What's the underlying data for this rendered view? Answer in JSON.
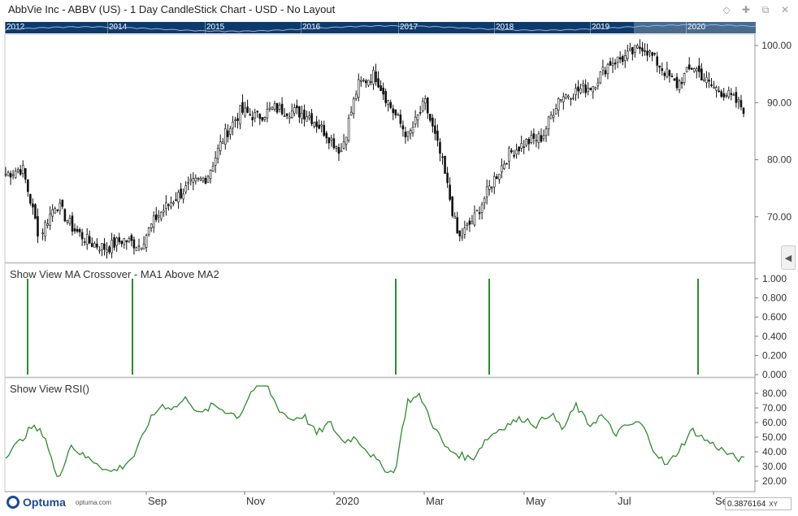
{
  "window": {
    "title": "AbbVie Inc - ABBV (US) - 1 Day CandleStick Chart - USD - No Layout",
    "icons": [
      "diamond-icon",
      "pin-icon",
      "restore-icon",
      "close-icon"
    ]
  },
  "overview": {
    "years": [
      "2012",
      "2014",
      "2015",
      "2016",
      "2017",
      "2018",
      "2019",
      "2020"
    ]
  },
  "colors": {
    "accent": "#0e3a6b",
    "candle": "#111111",
    "signal": "#2e8b2e",
    "rsi": "#2e8b2e"
  },
  "panels": {
    "price": {
      "y_ticks": [
        "100.00",
        "90.00",
        "80.00",
        "70.00"
      ]
    },
    "crossover": {
      "label": "Show View MA Crossover - MA1 Above MA2",
      "y_ticks": [
        "1.000",
        "0.800",
        "0.600",
        "0.400",
        "0.200",
        "0.000"
      ]
    },
    "rsi": {
      "label": "Show View RSI()",
      "y_ticks": [
        "80.00",
        "70.00",
        "60.00",
        "50.00",
        "40.00",
        "30.00",
        "20.00"
      ]
    }
  },
  "x_axis": {
    "labels": [
      "Sep",
      "Nov",
      "2020",
      "Mar",
      "May",
      "Jul",
      "Se"
    ]
  },
  "footer": {
    "brand": "Optuma",
    "url": "optuma.com",
    "crosshair_value": "0.3876164",
    "crosshair_mode": "XY"
  },
  "chart_data": [
    {
      "type": "candlestick",
      "title": "AbbVie Inc - ABBV (US) - 1 Day CandleStick Chart - USD - No Layout",
      "ylim": [
        62,
        102
      ],
      "x_labels": [
        "Sep",
        "Nov",
        "2020",
        "Mar",
        "May",
        "Jul",
        "Se"
      ],
      "close_path": [
        [
          "Jul 2019",
          77.5
        ],
        [
          "Aug 2019",
          78.5
        ],
        [
          "Aug 2019",
          66.5
        ],
        [
          "Aug 2019",
          72.5
        ],
        [
          "Aug 2019",
          68.0
        ],
        [
          "Sep 2019",
          65.5
        ],
        [
          "Sep 2019",
          64.5
        ],
        [
          "Sep 2019",
          66.0
        ],
        [
          "Oct 2019",
          65.0
        ],
        [
          "Oct 2019",
          70.0
        ],
        [
          "Oct 2019",
          73.0
        ],
        [
          "Oct 2019",
          75.5
        ],
        [
          "Nov 2019",
          77.0
        ],
        [
          "Nov 2019",
          84.0
        ],
        [
          "Nov 2019",
          88.5
        ],
        [
          "Dec 2019",
          87.5
        ],
        [
          "Dec 2019",
          89.0
        ],
        [
          "Dec 2019",
          88.5
        ],
        [
          "Jan 2020",
          88.0
        ],
        [
          "Jan 2020",
          85.0
        ],
        [
          "Jan 2020",
          81.5
        ],
        [
          "Feb 2020",
          93.0
        ],
        [
          "Feb 2020",
          95.0
        ],
        [
          "Feb 2020",
          89.0
        ],
        [
          "Mar 2020",
          84.0
        ],
        [
          "Mar 2020",
          90.0
        ],
        [
          "Mar 2020",
          80.0
        ],
        [
          "Mar 2020",
          66.0
        ],
        [
          "Mar 2020",
          70.0
        ],
        [
          "Apr 2020",
          76.0
        ],
        [
          "Apr 2020",
          81.0
        ],
        [
          "Apr 2020",
          83.0
        ],
        [
          "May 2020",
          84.0
        ],
        [
          "May 2020",
          91.0
        ],
        [
          "May 2020",
          92.0
        ],
        [
          "Jun 2020",
          93.0
        ],
        [
          "Jun 2020",
          97.0
        ],
        [
          "Jun 2020",
          98.0
        ],
        [
          "Jul 2020",
          100.0
        ],
        [
          "Jul 2020",
          96.5
        ],
        [
          "Jul 2020",
          93.0
        ],
        [
          "Aug 2020",
          96.5
        ],
        [
          "Aug 2020",
          93.0
        ],
        [
          "Aug 2020",
          91.5
        ],
        [
          "Sep 2020",
          89.0
        ]
      ]
    },
    {
      "type": "bar",
      "title": "Show View MA Crossover - MA1 Above MA2",
      "ylim": [
        0,
        1
      ],
      "events": [
        "Jul 2019",
        "Aug 2019",
        "Feb 2020",
        "Apr 2020",
        "Aug 2020"
      ],
      "values": [
        1,
        1,
        1,
        1,
        1
      ]
    },
    {
      "type": "line",
      "title": "Show View RSI()",
      "ylim": [
        15,
        85
      ],
      "values": [
        38,
        46,
        57,
        52,
        20,
        45,
        37,
        33,
        26,
        30,
        38,
        60,
        72,
        70,
        77,
        65,
        72,
        68,
        64,
        82,
        88,
        70,
        62,
        65,
        52,
        60,
        47,
        50,
        40,
        30,
        25,
        75,
        78,
        58,
        42,
        38,
        35,
        48,
        55,
        60,
        63,
        58,
        67,
        55,
        72,
        58,
        65,
        52,
        58,
        60,
        42,
        30,
        42,
        55,
        48,
        43,
        37,
        34
      ]
    }
  ]
}
